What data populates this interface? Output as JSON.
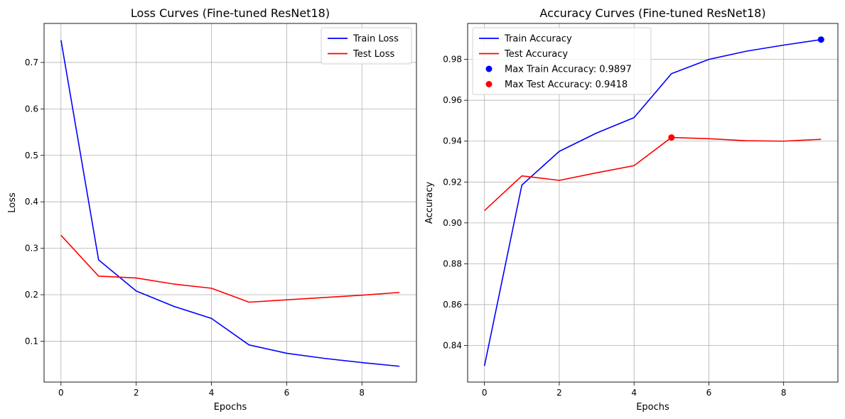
{
  "chart_data": [
    {
      "type": "line",
      "title": "Loss Curves (Fine-tuned ResNet18)",
      "xlabel": "Epochs",
      "ylabel": "Loss",
      "xlim": [
        -0.45,
        9.45
      ],
      "ylim": [
        0.012,
        0.784
      ],
      "xticks": [
        0,
        2,
        4,
        6,
        8
      ],
      "yticks": [
        0.1,
        0.2,
        0.3,
        0.4,
        0.5,
        0.6,
        0.7
      ],
      "grid": true,
      "legend": "top-right",
      "x": [
        0,
        1,
        2,
        3,
        4,
        5,
        6,
        7,
        8,
        9
      ],
      "series": [
        {
          "name": "Train Loss",
          "color": "#0000ff",
          "values": [
            0.748,
            0.275,
            0.208,
            0.175,
            0.149,
            0.092,
            0.074,
            0.063,
            0.054,
            0.046
          ]
        },
        {
          "name": "Test Loss",
          "color": "#ff0000",
          "values": [
            0.328,
            0.24,
            0.236,
            0.223,
            0.214,
            0.184,
            0.189,
            0.194,
            0.199,
            0.205
          ]
        }
      ]
    },
    {
      "type": "line",
      "title": "Accuracy Curves (Fine-tuned ResNet18)",
      "xlabel": "Epochs",
      "ylabel": "Accuracy",
      "xlim": [
        -0.45,
        9.45
      ],
      "ylim": [
        0.8221,
        0.9976
      ],
      "xticks": [
        0,
        2,
        4,
        6,
        8
      ],
      "yticks": [
        0.84,
        0.86,
        0.88,
        0.9,
        0.92,
        0.94,
        0.96,
        0.98
      ],
      "grid": true,
      "legend": "top-left",
      "x": [
        0,
        1,
        2,
        3,
        4,
        5,
        6,
        7,
        8,
        9
      ],
      "series": [
        {
          "name": "Train Accuracy",
          "color": "#0000ff",
          "values": [
            0.83,
            0.9185,
            0.935,
            0.944,
            0.9515,
            0.973,
            0.98,
            0.984,
            0.987,
            0.9897
          ]
        },
        {
          "name": "Test Accuracy",
          "color": "#ff0000",
          "values": [
            0.906,
            0.923,
            0.9208,
            0.9245,
            0.928,
            0.9418,
            0.9412,
            0.9402,
            0.94,
            0.9409
          ]
        }
      ],
      "markers": [
        {
          "name": "Max Train Accuracy: 0.9897",
          "color": "#0000ff",
          "x": 9,
          "y": 0.9897
        },
        {
          "name": "Max Test Accuracy: 0.9418",
          "color": "#ff0000",
          "x": 5,
          "y": 0.9418
        }
      ]
    }
  ]
}
